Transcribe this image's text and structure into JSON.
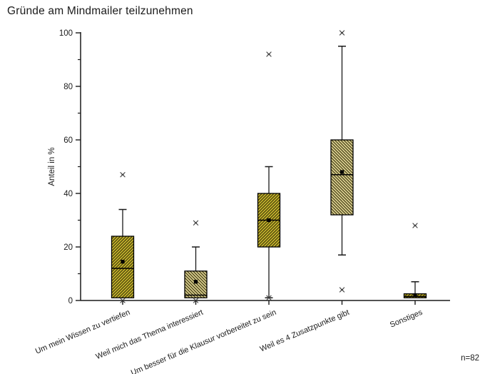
{
  "title": "Gründe am Mindmailer teilzunehmen",
  "footnote": "n=82",
  "chart_data": {
    "type": "boxplot",
    "title": "Gründe am Mindmailer teilzunehmen",
    "xlabel": "",
    "ylabel": "Anteil in %",
    "ylim": [
      0,
      100
    ],
    "yticks_major": [
      0,
      20,
      40,
      60,
      80,
      100
    ],
    "yticks_minor": [
      10,
      30,
      50,
      70,
      90
    ],
    "grid": false,
    "legend": "none",
    "sample_size_label": "n=82",
    "categories": [
      "Um mein Wissen zu vertiefen",
      "Weil mich das Thema interessiert",
      "Um besser für die Klausur vorbereitet zu sein",
      "Weil es 4 Zusatzpunkte gibt",
      "Sonstiges"
    ],
    "boxes": [
      {
        "label": "Um mein Wissen zu vertiefen",
        "q1": 1,
        "median": 12,
        "q3": 24,
        "mean": 14.5,
        "whisker_low": 1,
        "whisker_high": 34,
        "outliers": [
          47,
          0
        ],
        "style": "dark"
      },
      {
        "label": "Weil mich das Thema interessiert",
        "q1": 1,
        "median": 2,
        "q3": 11,
        "mean": 7,
        "whisker_low": 1,
        "whisker_high": 20,
        "outliers": [
          29,
          0
        ],
        "style": "light"
      },
      {
        "label": "Um besser für die Klausur vorbereitet zu sein",
        "q1": 20,
        "median": 30,
        "q3": 40,
        "mean": 30,
        "whisker_low": 1,
        "whisker_high": 50,
        "outliers": [
          92,
          1
        ],
        "style": "dark"
      },
      {
        "label": "Weil es 4 Zusatzpunkte gibt",
        "q1": 32,
        "median": 47,
        "q3": 60,
        "mean": 48,
        "whisker_low": 17,
        "whisker_high": 95,
        "outliers": [
          100,
          4
        ],
        "style": "light"
      },
      {
        "label": "Sonstiges",
        "q1": 1,
        "median": 1.5,
        "q3": 2.5,
        "mean": 2,
        "whisker_low": 1,
        "whisker_high": 7,
        "outliers": [
          28
        ],
        "style": "dark"
      }
    ],
    "colors": {
      "box_fill_dark": "#c8b72d",
      "box_fill_light": "#ded394",
      "hatch_line": "#332d06",
      "box_stroke": "#000000",
      "whisker": "#1a1a1a",
      "median": "#000000",
      "mean_marker": "#000000",
      "outlier_marker": "#3d3d3d",
      "axis": "#1a1a1a",
      "background": "#ffffff"
    }
  }
}
